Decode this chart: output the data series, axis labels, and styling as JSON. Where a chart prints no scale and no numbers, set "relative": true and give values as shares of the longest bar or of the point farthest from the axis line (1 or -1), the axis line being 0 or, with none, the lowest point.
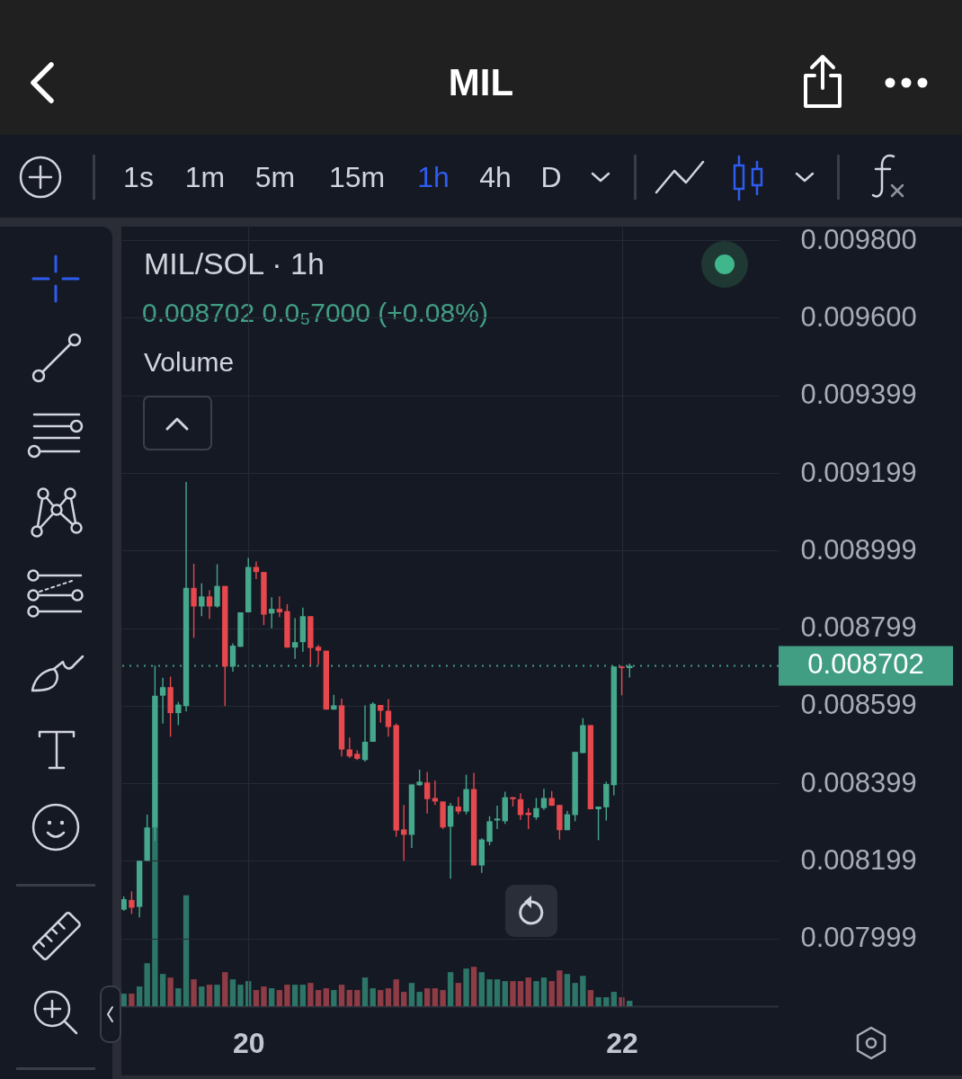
{
  "chart_data": [
    {
      "type": "candlestick",
      "title": "MIL",
      "subtitle": "MIL/SOL · 1h",
      "annotations": [
        "0.008702 0.0₅7000 (+0.08%)",
        "1s",
        "1m",
        "5m",
        "15m",
        "1h",
        "4h",
        "D"
      ],
      "x": [
        19.333,
        19.375,
        19.417,
        19.458,
        19.5,
        19.542,
        19.583,
        19.625,
        19.667,
        19.708,
        19.75,
        19.792,
        19.833,
        19.875,
        19.917,
        19.958,
        20,
        20.042,
        20.083,
        20.125,
        20.167,
        20.208,
        20.25,
        20.292,
        20.333,
        20.375,
        20.417,
        20.458,
        20.5,
        20.542,
        20.583,
        20.625,
        20.667,
        20.708,
        20.75,
        20.792,
        20.833,
        20.875,
        20.917,
        20.958,
        21,
        21.042,
        21.083,
        21.125,
        21.167,
        21.208,
        21.25,
        21.292,
        21.333,
        21.375,
        21.417,
        21.458,
        21.5,
        21.542,
        21.583,
        21.625,
        21.667,
        21.708,
        21.75,
        21.792,
        21.833,
        21.875,
        21.917,
        21.958,
        22,
        22.042
      ],
      "ohlc": [
        [
          0.008073,
          0.008107,
          0.00807,
          0.0081
        ],
        [
          0.008098,
          0.00812,
          0.008062,
          0.008078
        ],
        [
          0.00808,
          0.008199,
          0.008053,
          0.008199
        ],
        [
          0.008199,
          0.008318,
          0.008199,
          0.008285
        ],
        [
          0.008285,
          0.008703,
          0.00825,
          0.008625
        ],
        [
          0.008625,
          0.008671,
          0.008553,
          0.008647
        ],
        [
          0.008647,
          0.008674,
          0.008519,
          0.00858
        ],
        [
          0.00858,
          0.008609,
          0.008549,
          0.008602
        ],
        [
          0.008598,
          0.009176,
          0.008584,
          0.008903
        ],
        [
          0.008903,
          0.008965,
          0.008774,
          0.008855
        ],
        [
          0.008855,
          0.008915,
          0.00883,
          0.008881
        ],
        [
          0.008881,
          0.008897,
          0.008823,
          0.008855
        ],
        [
          0.008855,
          0.008964,
          0.008852,
          0.008908
        ],
        [
          0.008908,
          0.008908,
          0.008598,
          0.0087
        ],
        [
          0.0087,
          0.00876,
          0.008687,
          0.008754
        ],
        [
          0.008751,
          0.00884,
          0.008751,
          0.00884
        ],
        [
          0.00884,
          0.00898,
          0.00884,
          0.008957
        ],
        [
          0.008957,
          0.008971,
          0.008926,
          0.008944
        ],
        [
          0.008944,
          0.008944,
          0.008807,
          0.008834
        ],
        [
          0.008837,
          0.008879,
          0.008799,
          0.008849
        ],
        [
          0.008849,
          0.008881,
          0.008828,
          0.00884
        ],
        [
          0.008843,
          0.008861,
          0.008749,
          0.008749
        ],
        [
          0.008749,
          0.008825,
          0.00872,
          0.008763
        ],
        [
          0.008763,
          0.008852,
          0.008738,
          0.00883
        ],
        [
          0.00883,
          0.00883,
          0.0087,
          0.008748
        ],
        [
          0.008751,
          0.008756,
          0.008705,
          0.008741
        ],
        [
          0.008741,
          0.008741,
          0.008589,
          0.008589
        ],
        [
          0.008589,
          0.008627,
          0.008589,
          0.0086
        ],
        [
          0.0086,
          0.008617,
          0.008468,
          0.008486
        ],
        [
          0.008486,
          0.008517,
          0.008464,
          0.008468
        ],
        [
          0.008475,
          0.008484,
          0.008459,
          0.008462
        ],
        [
          0.008459,
          0.0086,
          0.008455,
          0.008506
        ],
        [
          0.008506,
          0.008608,
          0.008506,
          0.008604
        ],
        [
          0.008601,
          0.008601,
          0.008555,
          0.008586
        ],
        [
          0.008586,
          0.008616,
          0.008519,
          0.008544
        ],
        [
          0.008549,
          0.008553,
          0.008261,
          0.008277
        ],
        [
          0.00828,
          0.008343,
          0.008199,
          0.008266
        ],
        [
          0.008266,
          0.008396,
          0.008232,
          0.008396
        ],
        [
          0.008394,
          0.008434,
          0.008392,
          0.008403
        ],
        [
          0.008401,
          0.008428,
          0.008321,
          0.008358
        ],
        [
          0.008361,
          0.008406,
          0.008343,
          0.008352
        ],
        [
          0.008352,
          0.008352,
          0.008281,
          0.008285
        ],
        [
          0.008287,
          0.008348,
          0.008153,
          0.008341
        ],
        [
          0.008339,
          0.008364,
          0.008319,
          0.008326
        ],
        [
          0.008326,
          0.008421,
          0.008319,
          0.008384
        ],
        [
          0.008384,
          0.008426,
          0.008187,
          0.008187
        ],
        [
          0.008187,
          0.008257,
          0.008168,
          0.008254
        ],
        [
          0.008248,
          0.008314,
          0.008239,
          0.008301
        ],
        [
          0.008303,
          0.008341,
          0.008281,
          0.008308
        ],
        [
          0.008301,
          0.008377,
          0.008294,
          0.008363
        ],
        [
          0.008363,
          0.008363,
          0.008339,
          0.008358
        ],
        [
          0.008358,
          0.008373,
          0.008305,
          0.008317
        ],
        [
          0.008323,
          0.008335,
          0.008281,
          0.008317
        ],
        [
          0.008311,
          0.008361,
          0.008305,
          0.008335
        ],
        [
          0.008335,
          0.008385,
          0.00833,
          0.008361
        ],
        [
          0.008361,
          0.008379,
          0.008341,
          0.008341
        ],
        [
          0.008343,
          0.008343,
          0.008254,
          0.008278
        ],
        [
          0.008278,
          0.008328,
          0.008278,
          0.008319
        ],
        [
          0.008317,
          0.00848,
          0.008301,
          0.00848
        ],
        [
          0.008477,
          0.008567,
          0.008477,
          0.008549
        ],
        [
          0.008549,
          0.008549,
          0.008332,
          0.008332
        ],
        [
          0.008332,
          0.008339,
          0.008252,
          0.008339
        ],
        [
          0.008337,
          0.008403,
          0.008303,
          0.008397
        ],
        [
          0.008394,
          0.0087,
          0.008368,
          0.0087
        ],
        [
          0.0087,
          0.008702,
          0.008626,
          0.008696
        ],
        [
          0.008696,
          0.008708,
          0.008672,
          0.008702
        ]
      ],
      "colors": [
        "#45a88c",
        "#e5484d",
        "#45a88c",
        "#45a88c",
        "#45a88c",
        "#45a88c",
        "#e5484d",
        "#45a88c",
        "#45a88c",
        "#e5484d",
        "#45a88c",
        "#e5484d",
        "#45a88c",
        "#e5484d",
        "#45a88c",
        "#45a88c",
        "#45a88c",
        "#e5484d",
        "#e5484d",
        "#45a88c",
        "#e5484d",
        "#e5484d",
        "#45a88c",
        "#45a88c",
        "#e5484d",
        "#e5484d",
        "#e5484d",
        "#45a88c",
        "#e5484d",
        "#e5484d",
        "#e5484d",
        "#45a88c",
        "#45a88c",
        "#e5484d",
        "#e5484d",
        "#e5484d",
        "#e5484d",
        "#45a88c",
        "#45a88c",
        "#e5484d",
        "#e5484d",
        "#e5484d",
        "#45a88c",
        "#e5484d",
        "#45a88c",
        "#e5484d",
        "#45a88c",
        "#45a88c",
        "#45a88c",
        "#45a88c",
        "#e5484d",
        "#e5484d",
        "#e5484d",
        "#45a88c",
        "#45a88c",
        "#e5484d",
        "#e5484d",
        "#45a88c",
        "#45a88c",
        "#45a88c",
        "#e5484d",
        "#45a88c",
        "#45a88c",
        "#45a88c",
        "#e5484d",
        "#45a88c"
      ],
      "xlim": [
        19.32,
        22.84
      ],
      "xticks": [
        20,
        22
      ],
      "ylim": [
        0.007824,
        0.009835
      ],
      "yticks": [
        {
          "value": 0.0098,
          "label": "0.009800"
        },
        {
          "value": 0.0096,
          "label": "0.009600"
        },
        {
          "value": 0.009399,
          "label": "0.009399"
        },
        {
          "value": 0.009199,
          "label": "0.009199"
        },
        {
          "value": 0.008999,
          "label": "0.008999"
        },
        {
          "value": 0.008799,
          "label": "0.008799"
        },
        {
          "value": 0.008599,
          "label": "0.008599"
        },
        {
          "value": 0.008399,
          "label": "0.008399"
        },
        {
          "value": 0.008199,
          "label": "0.008199"
        },
        {
          "value": 0.007999,
          "label": "0.007999"
        }
      ],
      "grid": true,
      "ref_lines": [
        {
          "axis": "y",
          "value": 0.008702,
          "label": "0.008702",
          "color": "#429e83",
          "line_style": "dotted"
        }
      ]
    },
    {
      "type": "bar",
      "title": "Volume",
      "relative": true,
      "x": [
        19.333,
        19.375,
        19.417,
        19.458,
        19.5,
        19.542,
        19.583,
        19.625,
        19.667,
        19.708,
        19.75,
        19.792,
        19.833,
        19.875,
        19.917,
        19.958,
        20,
        20.042,
        20.083,
        20.125,
        20.167,
        20.208,
        20.25,
        20.292,
        20.333,
        20.375,
        20.417,
        20.458,
        20.5,
        20.542,
        20.583,
        20.625,
        20.667,
        20.708,
        20.75,
        20.792,
        20.833,
        20.875,
        20.917,
        20.958,
        21,
        21.042,
        21.083,
        21.125,
        21.167,
        21.208,
        21.25,
        21.292,
        21.333,
        21.375,
        21.417,
        21.458,
        21.5,
        21.542,
        21.583,
        21.625,
        21.667,
        21.708,
        21.75,
        21.792,
        21.833,
        21.875,
        21.917,
        21.958,
        22,
        22.042
      ],
      "values": [
        0.07,
        0.07,
        0.11,
        0.24,
        1,
        0.18,
        0.16,
        0.1,
        0.62,
        0.15,
        0.11,
        0.12,
        0.12,
        0.19,
        0.15,
        0.12,
        0.14,
        0.09,
        0.11,
        0.1,
        0.09,
        0.12,
        0.12,
        0.12,
        0.13,
        0.09,
        0.1,
        0.09,
        0.12,
        0.09,
        0.09,
        0.16,
        0.1,
        0.09,
        0.1,
        0.15,
        0.08,
        0.13,
        0.08,
        0.1,
        0.1,
        0.09,
        0.19,
        0.13,
        0.21,
        0.22,
        0.19,
        0.15,
        0.15,
        0.14,
        0.14,
        0.14,
        0.16,
        0.14,
        0.16,
        0.14,
        0.2,
        0.18,
        0.13,
        0.17,
        0.09,
        0.05,
        0.05,
        0.08,
        0.05,
        0.03
      ],
      "colors": [
        "#2d7567",
        "#8e3c45",
        "#2d7567",
        "#2d7567",
        "#2d7567",
        "#2d7567",
        "#8e3c45",
        "#2d7567",
        "#2d7567",
        "#8e3c45",
        "#2d7567",
        "#8e3c45",
        "#2d7567",
        "#8e3c45",
        "#2d7567",
        "#2d7567",
        "#2d7567",
        "#8e3c45",
        "#8e3c45",
        "#2d7567",
        "#8e3c45",
        "#8e3c45",
        "#2d7567",
        "#2d7567",
        "#8e3c45",
        "#8e3c45",
        "#8e3c45",
        "#2d7567",
        "#8e3c45",
        "#8e3c45",
        "#8e3c45",
        "#2d7567",
        "#2d7567",
        "#8e3c45",
        "#8e3c45",
        "#8e3c45",
        "#8e3c45",
        "#2d7567",
        "#2d7567",
        "#8e3c45",
        "#8e3c45",
        "#8e3c45",
        "#2d7567",
        "#8e3c45",
        "#2d7567",
        "#8e3c45",
        "#2d7567",
        "#2d7567",
        "#2d7567",
        "#2d7567",
        "#8e3c45",
        "#8e3c45",
        "#8e3c45",
        "#2d7567",
        "#2d7567",
        "#8e3c45",
        "#8e3c45",
        "#2d7567",
        "#2d7567",
        "#2d7567",
        "#8e3c45",
        "#2d7567",
        "#2d7567",
        "#2d7567",
        "#8e3c45",
        "#2d7567"
      ],
      "xlim": [
        19.32,
        22.84
      ],
      "tick_labels": false
    }
  ]
}
